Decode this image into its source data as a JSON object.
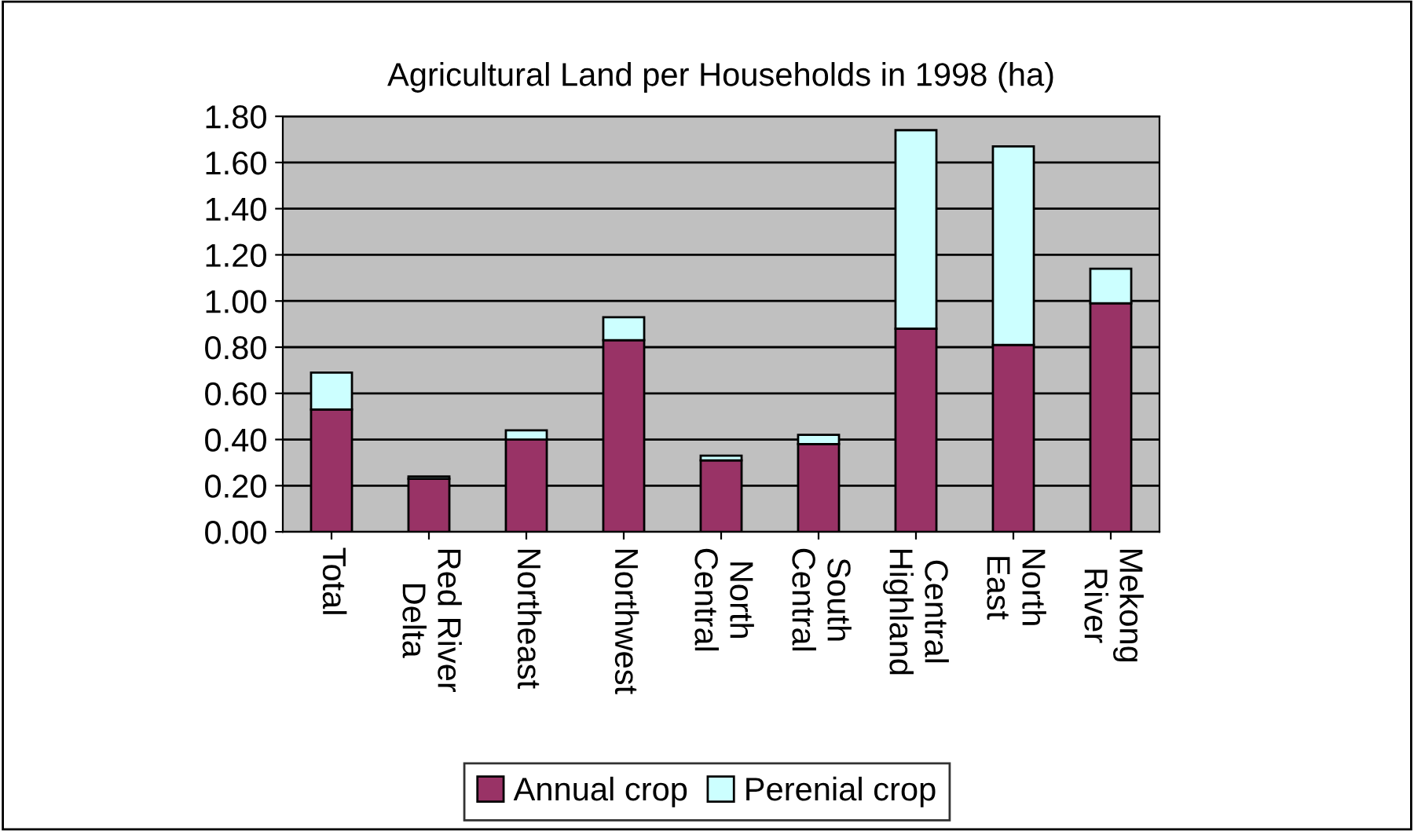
{
  "chart_data": {
    "type": "bar",
    "title": "Agricultural Land per Households in 1998 (ha)",
    "categories": [
      "Total",
      "Red River\nDelta",
      "Northeast",
      "Northwest",
      "North\nCentral",
      "South\nCentral",
      "Central\nHighland",
      "North\nEast",
      "Mekong\nRiver"
    ],
    "stacked": true,
    "series": [
      {
        "name": "Annual crop",
        "color": "#993366",
        "values": [
          0.53,
          0.23,
          0.4,
          0.83,
          0.31,
          0.38,
          0.88,
          0.81,
          0.99
        ]
      },
      {
        "name": "Perenial crop",
        "color": "#ccffff",
        "values": [
          0.16,
          0.01,
          0.04,
          0.1,
          0.02,
          0.04,
          0.86,
          0.86,
          0.15
        ]
      }
    ],
    "ylim": [
      0,
      1.8
    ],
    "yticks": [
      {
        "value": 0,
        "label": "0.00"
      },
      {
        "value": 0.2,
        "label": "0.20"
      },
      {
        "value": 0.4,
        "label": "0.40"
      },
      {
        "value": 0.6,
        "label": "0.60"
      },
      {
        "value": 0.8,
        "label": "0.80"
      },
      {
        "value": 1.0,
        "label": "1.00"
      },
      {
        "value": 1.2,
        "label": "1.20"
      },
      {
        "value": 1.4,
        "label": "1.40"
      },
      {
        "value": 1.6,
        "label": "1.60"
      },
      {
        "value": 1.8,
        "label": "1.80"
      }
    ],
    "grid": "y",
    "legend": "bottom"
  }
}
